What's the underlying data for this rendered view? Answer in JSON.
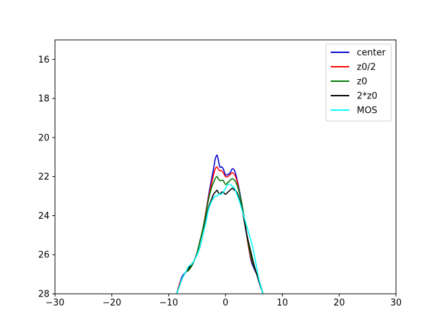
{
  "chart_data": {
    "type": "line",
    "title": "",
    "xlabel": "",
    "ylabel": "",
    "xlim": [
      -30,
      30
    ],
    "ylim": [
      28,
      15
    ],
    "y_inverted": true,
    "grid": false,
    "legend_position": "top-right",
    "x_ticks": [
      {
        "value": -30,
        "label": "−30"
      },
      {
        "value": -20,
        "label": "−20"
      },
      {
        "value": -10,
        "label": "−10"
      },
      {
        "value": 0,
        "label": "0"
      },
      {
        "value": 10,
        "label": "10"
      },
      {
        "value": 20,
        "label": "20"
      },
      {
        "value": 30,
        "label": "30"
      }
    ],
    "y_ticks": [
      {
        "value": 16,
        "label": "16"
      },
      {
        "value": 18,
        "label": "18"
      },
      {
        "value": 20,
        "label": "20"
      },
      {
        "value": 22,
        "label": "22"
      },
      {
        "value": 24,
        "label": "24"
      },
      {
        "value": 26,
        "label": "26"
      },
      {
        "value": 28,
        "label": "28"
      }
    ],
    "series": [
      {
        "name": "center",
        "color": "#0000cc",
        "x": [
          -8.6,
          -8.1,
          -7.6,
          -7.0,
          -6.5,
          -6.0,
          -5.5,
          -5.0,
          -4.5,
          -4.0,
          -3.5,
          -3.0,
          -2.5,
          -2.1,
          -1.8,
          -1.5,
          -1.3,
          -1.0,
          -0.7,
          -0.4,
          0.0,
          0.4,
          0.8,
          1.2,
          1.6,
          2.0,
          2.5,
          3.0,
          3.5,
          4.0,
          4.5,
          5.0,
          5.5,
          6.0,
          6.6
        ],
        "y": [
          28.0,
          27.5,
          27.1,
          26.9,
          26.7,
          26.6,
          26.3,
          25.9,
          25.3,
          24.7,
          23.9,
          23.0,
          22.2,
          21.6,
          21.1,
          20.9,
          21.1,
          21.5,
          21.5,
          21.6,
          21.9,
          21.9,
          21.8,
          21.6,
          21.7,
          22.1,
          22.8,
          23.6,
          24.6,
          25.5,
          26.3,
          26.7,
          27.0,
          27.4,
          28.0
        ]
      },
      {
        "name": "z0/2",
        "color": "#ff0000",
        "x": [
          -8.6,
          -8.1,
          -7.6,
          -7.0,
          -6.5,
          -6.0,
          -5.5,
          -5.0,
          -4.5,
          -4.0,
          -3.5,
          -3.0,
          -2.5,
          -2.1,
          -1.8,
          -1.5,
          -1.3,
          -1.0,
          -0.7,
          -0.4,
          0.0,
          0.4,
          0.8,
          1.2,
          1.6,
          2.0,
          2.5,
          3.0,
          3.5,
          4.0,
          4.5,
          5.0,
          5.5,
          6.0,
          6.6
        ],
        "y": [
          28.0,
          27.5,
          27.2,
          26.9,
          26.8,
          26.6,
          26.3,
          25.9,
          25.3,
          24.7,
          23.9,
          23.1,
          22.4,
          21.9,
          21.6,
          21.5,
          21.6,
          21.7,
          21.7,
          21.8,
          22.0,
          22.0,
          21.9,
          21.8,
          21.9,
          22.2,
          22.9,
          23.6,
          24.5,
          25.5,
          26.2,
          26.6,
          27.0,
          27.4,
          28.0
        ]
      },
      {
        "name": "z0",
        "color": "#007700",
        "x": [
          -8.6,
          -8.1,
          -7.6,
          -7.0,
          -6.5,
          -6.0,
          -5.5,
          -5.0,
          -4.5,
          -4.0,
          -3.5,
          -3.0,
          -2.5,
          -2.1,
          -1.8,
          -1.5,
          -1.3,
          -1.0,
          -0.7,
          -0.4,
          0.0,
          0.4,
          0.8,
          1.2,
          1.6,
          2.0,
          2.5,
          3.0,
          3.5,
          4.0,
          4.5,
          5.0,
          5.5,
          6.0,
          6.6
        ],
        "y": [
          28.0,
          27.6,
          27.2,
          26.9,
          26.8,
          26.6,
          26.3,
          25.9,
          25.3,
          24.7,
          24.0,
          23.2,
          22.6,
          22.3,
          22.1,
          22.0,
          22.1,
          22.2,
          22.2,
          22.2,
          22.4,
          22.3,
          22.2,
          22.1,
          22.2,
          22.4,
          22.9,
          23.6,
          24.5,
          25.4,
          26.1,
          26.6,
          27.0,
          27.4,
          28.0
        ]
      },
      {
        "name": "2*z0",
        "color": "#000000",
        "x": [
          -8.6,
          -8.1,
          -7.6,
          -7.0,
          -6.5,
          -6.0,
          -5.5,
          -5.0,
          -4.5,
          -4.0,
          -3.5,
          -3.0,
          -2.5,
          -2.1,
          -1.8,
          -1.5,
          -1.3,
          -1.0,
          -0.7,
          -0.4,
          0.0,
          0.4,
          0.8,
          1.2,
          1.6,
          2.0,
          2.5,
          3.0,
          3.5,
          4.0,
          4.5,
          5.0,
          5.5,
          6.0,
          6.6
        ],
        "y": [
          28.0,
          27.6,
          27.2,
          26.9,
          26.7,
          26.5,
          26.3,
          26.0,
          25.6,
          25.0,
          24.3,
          23.6,
          23.2,
          22.9,
          22.8,
          22.7,
          22.8,
          22.9,
          22.8,
          22.8,
          22.9,
          22.8,
          22.7,
          22.6,
          22.7,
          22.8,
          23.2,
          23.8,
          24.6,
          25.3,
          25.9,
          26.5,
          27.0,
          27.5,
          28.0
        ]
      },
      {
        "name": "MOS",
        "color": "#00ffff",
        "x": [
          -8.6,
          -8.1,
          -7.6,
          -7.0,
          -6.5,
          -6.0,
          -5.5,
          -5.0,
          -4.5,
          -4.0,
          -3.5,
          -3.0,
          -2.5,
          -2.1,
          -1.8,
          -1.5,
          -1.3,
          -1.0,
          -0.7,
          -0.4,
          0.0,
          0.4,
          0.8,
          1.2,
          1.6,
          2.0,
          2.5,
          3.0,
          3.5,
          4.0,
          4.5,
          5.0,
          5.5,
          6.0,
          6.6
        ],
        "y": [
          28.0,
          27.6,
          27.2,
          26.9,
          26.6,
          26.5,
          26.3,
          26.0,
          25.6,
          25.0,
          24.4,
          23.7,
          23.3,
          23.1,
          23.0,
          23.0,
          22.9,
          22.9,
          22.9,
          22.8,
          22.6,
          22.4,
          22.4,
          22.5,
          22.6,
          22.9,
          23.3,
          23.8,
          24.3,
          24.8,
          25.3,
          25.9,
          26.7,
          27.4,
          28.0
        ]
      }
    ]
  }
}
